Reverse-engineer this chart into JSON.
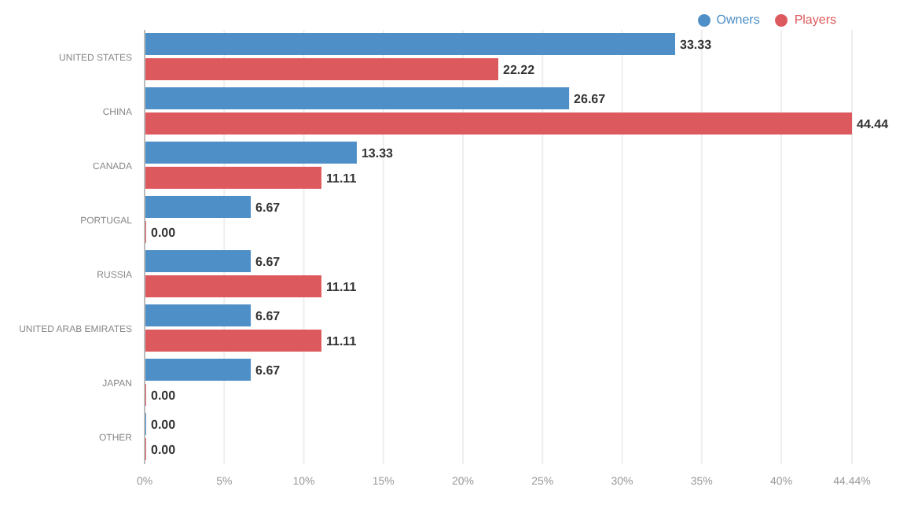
{
  "chart_data": {
    "type": "bar",
    "orientation": "horizontal",
    "categories": [
      "UNITED STATES",
      "CHINA",
      "CANADA",
      "PORTUGAL",
      "RUSSIA",
      "UNITED ARAB EMIRATES",
      "JAPAN",
      "OTHER"
    ],
    "series": [
      {
        "name": "Owners",
        "color": "#4e8fc7",
        "values": [
          33.33,
          26.67,
          13.33,
          6.67,
          6.67,
          6.67,
          6.67,
          0
        ],
        "value_labels": [
          "33.33",
          "26.67",
          "13.33",
          "6.67",
          "6.67",
          "6.67",
          "6.67",
          "0.00"
        ]
      },
      {
        "name": "Players",
        "color": "#dc5a5e",
        "values": [
          22.22,
          44.44,
          11.11,
          0,
          11.11,
          11.11,
          0,
          0
        ],
        "value_labels": [
          "22.22",
          "44.44",
          "11.11",
          "0.00",
          "11.11",
          "11.11",
          "0.00",
          "0.00"
        ]
      }
    ],
    "xlim": [
      0,
      44.44
    ],
    "xticks": [
      {
        "value": 0,
        "label": "0%"
      },
      {
        "value": 5,
        "label": "5%"
      },
      {
        "value": 10,
        "label": "10%"
      },
      {
        "value": 15,
        "label": "15%"
      },
      {
        "value": 20,
        "label": "20%"
      },
      {
        "value": 25,
        "label": "25%"
      },
      {
        "value": 30,
        "label": "30%"
      },
      {
        "value": 35,
        "label": "35%"
      },
      {
        "value": 40,
        "label": "40%"
      },
      {
        "value": 44.44,
        "label": "44.44%"
      }
    ],
    "grid": "x",
    "legend": "top right"
  }
}
